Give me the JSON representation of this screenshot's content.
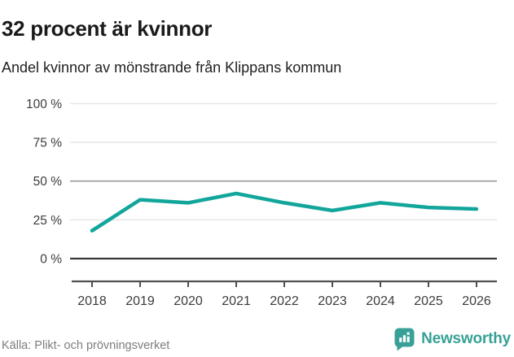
{
  "chart_data": {
    "type": "line",
    "title": "32 procent är kvinnor",
    "subtitle": "Andel kvinnor av mönstrande från Klippans kommun",
    "categories": [
      "2018",
      "2019",
      "2020",
      "2021",
      "2022",
      "2023",
      "2024",
      "2025",
      "2026"
    ],
    "series": [
      {
        "name": "Andel kvinnor av mönstrande",
        "values": [
          18,
          38,
          36,
          42,
          36,
          31,
          36,
          33,
          32
        ]
      }
    ],
    "xlabel": "",
    "ylabel": "",
    "ylim": [
      0,
      100
    ],
    "yticks": [
      0,
      25,
      50,
      75,
      100
    ],
    "ytick_labels": [
      "0 %",
      "25 %",
      "50 %",
      "75 %",
      "100 %"
    ],
    "grid": true,
    "legend": false,
    "unit": "%",
    "colors": {
      "line": "#12a69b",
      "grid_light": "#e8e8e8",
      "grid_mid": "#9a9a9a",
      "grid_zero": "#383838",
      "axis": "#4f4f4f",
      "tick_label": "#3c3c3c"
    }
  },
  "footer": {
    "source": "Källa: Plikt- och prövningsverket",
    "brand": "Newsworthy",
    "brand_color": "#38a197"
  }
}
